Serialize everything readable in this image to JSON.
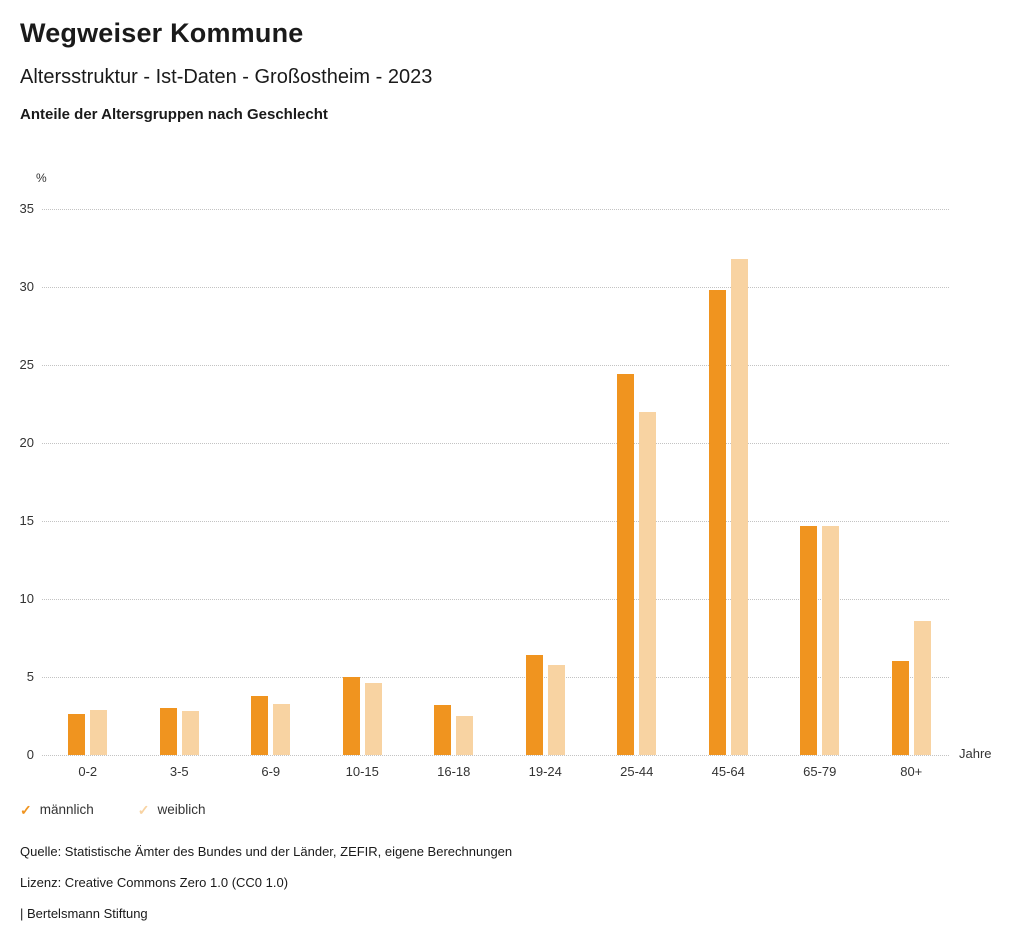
{
  "header": {
    "title": "Wegweiser Kommune",
    "subtitle": "Altersstruktur - Ist-Daten - Großostheim - 2023",
    "chart_heading": "Anteile der Altersgruppen nach Geschlecht"
  },
  "chart_data": {
    "type": "bar",
    "title": "Anteile der Altersgruppen nach Geschlecht",
    "unit_label": "%",
    "x_axis_label": "Jahre",
    "categories": [
      "0-2",
      "3-5",
      "6-9",
      "10-15",
      "16-18",
      "19-24",
      "25-44",
      "45-64",
      "65-79",
      "80+"
    ],
    "series": [
      {
        "name": "männlich",
        "color": "#f0941f",
        "values": [
          2.6,
          3.0,
          3.8,
          5.0,
          3.2,
          6.4,
          24.4,
          29.8,
          14.7,
          6.0
        ]
      },
      {
        "name": "weiblich",
        "color": "#f8d3a2",
        "values": [
          2.9,
          2.8,
          3.3,
          4.6,
          2.5,
          5.8,
          22.0,
          31.8,
          14.7,
          8.6
        ]
      }
    ],
    "ylim": [
      0,
      35
    ],
    "yticks": [
      0,
      5,
      10,
      15,
      20,
      25,
      30,
      35
    ],
    "grid": "dotted-horizontal",
    "legend_position": "bottom-left"
  },
  "legend": [
    {
      "label": "männlich",
      "color": "#f0941f",
      "icon": "check"
    },
    {
      "label": "weiblich",
      "color": "#f8d3a2",
      "icon": "check"
    }
  ],
  "footer": {
    "source": "Quelle: Statistische Ämter des Bundes und der Länder, ZEFIR, eigene Berechnungen",
    "license": "Lizenz: Creative Commons Zero 1.0 (CC0 1.0)",
    "attribution": "| Bertelsmann Stiftung"
  }
}
